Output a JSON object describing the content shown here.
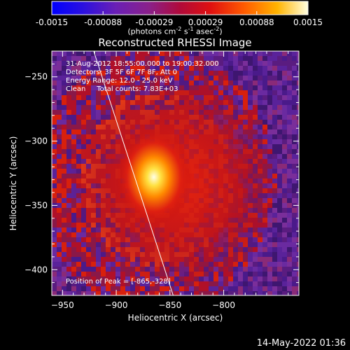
{
  "colorbar": {
    "ticks": [
      "-0.0015",
      "-0.00088",
      "-0.00029",
      "0.00029",
      "0.00088",
      "0.0015"
    ],
    "unit": "(photons cm",
    "unit_exp1": "-2",
    "unit_mid": " s",
    "unit_exp2": "-1",
    "unit_mid2": " asec",
    "unit_exp3": "-2",
    "unit_end": ")"
  },
  "chart_data": {
    "type": "heatmap",
    "title": "Reconstructed RHESSI Image",
    "xlabel": "Heliocentric X (arcsec)",
    "ylabel": "Heliocentric Y (arcsec)",
    "xlim": [
      -960,
      -730
    ],
    "ylim": [
      -420,
      -230
    ],
    "x_ticks": [
      -950,
      -900,
      -850,
      -800
    ],
    "y_ticks": [
      -250,
      -300,
      -350,
      -400
    ],
    "x_tick_labels": [
      "−950",
      "−900",
      "−850",
      "−800"
    ],
    "y_tick_labels": [
      "−250",
      "−300",
      "−350",
      "−400"
    ],
    "peak": [
      -865,
      -328
    ],
    "limb_line": [
      [
        -921,
        -230
      ],
      [
        -847,
        -420
      ]
    ],
    "color_range": [
      -0.0015,
      0.0015
    ]
  },
  "annotations": {
    "line1": "31-Aug-2012 18:55:00.000 to 19:00:32.000",
    "line2": "Detectors: 3F 5F 6F 7F 8F, Att 0",
    "line3": "Energy Range: 12.0 - 25.0 keV",
    "line4": "Clean     Total counts: 7.83E+03",
    "peak_label": "Position of Peak = [-865,-328]"
  },
  "datestamp": "14-May-2022 01:36"
}
